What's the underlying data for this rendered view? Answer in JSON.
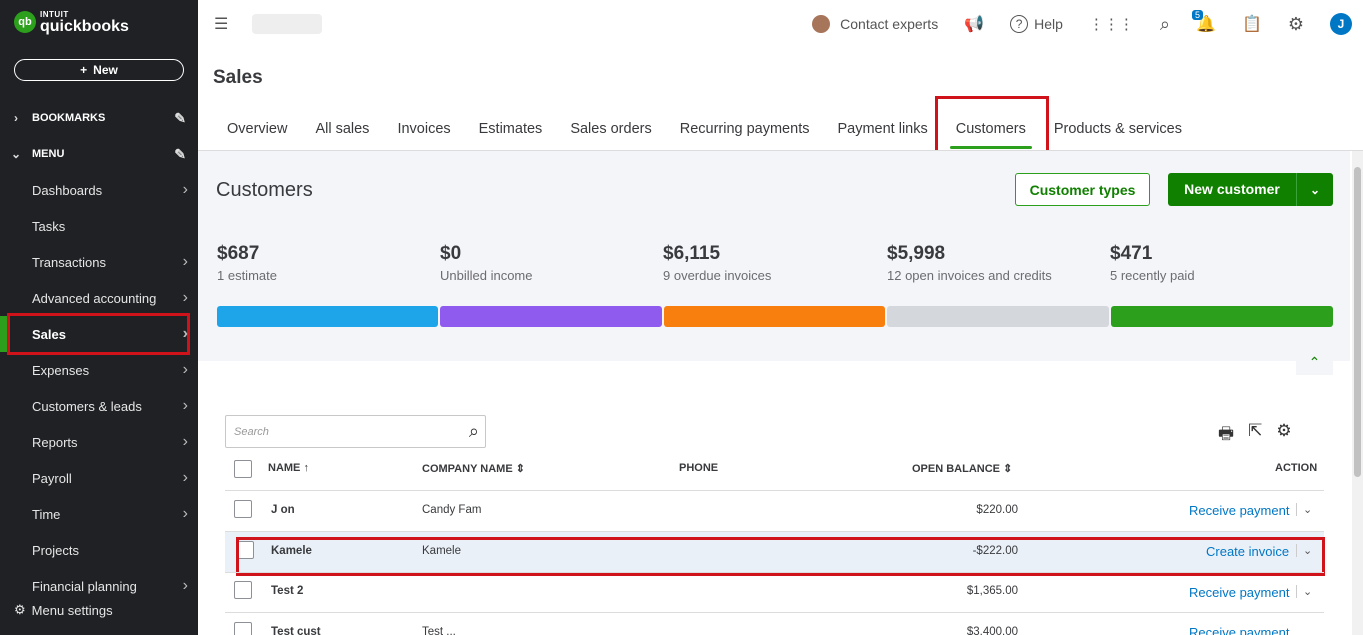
{
  "sidebar": {
    "logo_small": "INTUIT",
    "logo_big": "quickbooks",
    "logo_mark": "qb",
    "new_label": "New",
    "bookmarks_label": "BOOKMARKS",
    "menu_label": "MENU",
    "items": [
      {
        "label": "Dashboards",
        "arrow": true
      },
      {
        "label": "Tasks",
        "arrow": false
      },
      {
        "label": "Transactions",
        "arrow": true
      },
      {
        "label": "Advanced accounting",
        "arrow": true
      },
      {
        "label": "Sales",
        "arrow": true
      },
      {
        "label": "Expenses",
        "arrow": true
      },
      {
        "label": "Customers & leads",
        "arrow": true
      },
      {
        "label": "Reports",
        "arrow": true
      },
      {
        "label": "Payroll",
        "arrow": true
      },
      {
        "label": "Time",
        "arrow": true
      },
      {
        "label": "Projects",
        "arrow": false
      },
      {
        "label": "Financial planning",
        "arrow": true
      }
    ],
    "menu_settings": "Menu settings"
  },
  "topbar": {
    "contact": "Contact experts",
    "help": "Help",
    "notif_count": "5",
    "avatar_initial": "J"
  },
  "page": {
    "title": "Sales",
    "tabs": [
      "Overview",
      "All sales",
      "Invoices",
      "Estimates",
      "Sales orders",
      "Recurring payments",
      "Payment links",
      "Customers",
      "Products & services"
    ],
    "active_tab": "Customers"
  },
  "customers": {
    "title": "Customers",
    "customer_types": "Customer types",
    "new_customer": "New customer",
    "metrics": [
      {
        "value": "$687",
        "label": "1 estimate",
        "color": "#1ea5e9"
      },
      {
        "value": "$0",
        "label": "Unbilled income",
        "color": "#8f5bef"
      },
      {
        "value": "$6,115",
        "label": "9 overdue invoices",
        "color": "#f87f0d"
      },
      {
        "value": "$5,998",
        "label": "12 open invoices and credits",
        "color": "#d4d7dc"
      },
      {
        "value": "$471",
        "label": "5 recently paid",
        "color": "#2ca01c"
      }
    ]
  },
  "table": {
    "search_placeholder": "Search",
    "headers": {
      "name": "NAME",
      "company": "COMPANY NAME",
      "phone": "PHONE",
      "balance": "OPEN BALANCE",
      "action": "ACTION"
    },
    "rows": [
      {
        "name": "J        on",
        "company": "Candy Fam",
        "balance": "$220.00",
        "action": "Receive payment"
      },
      {
        "name": "Kamele",
        "company": "Kamele",
        "balance": "-$222.00",
        "action": "Create invoice"
      },
      {
        "name": "Test 2",
        "company": "",
        "balance": "$1,365.00",
        "action": "Receive payment"
      },
      {
        "name": "Test cust",
        "company": "Test ...",
        "balance": "$3,400.00",
        "action": "Receive payment"
      }
    ]
  }
}
